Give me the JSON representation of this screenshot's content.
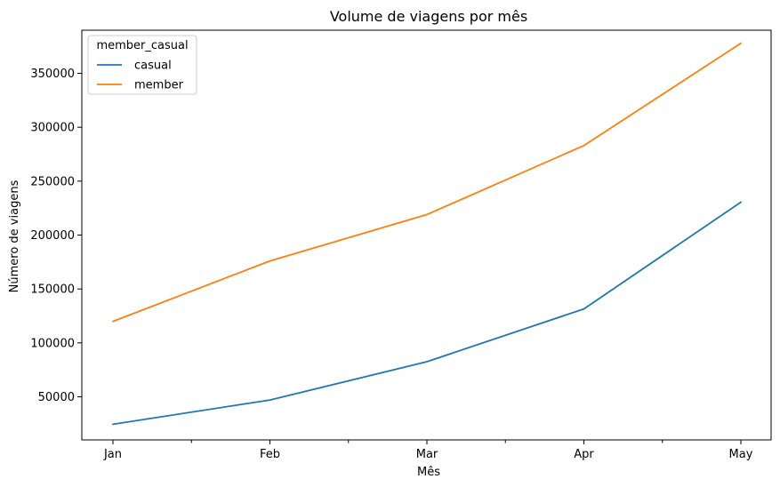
{
  "chart_data": {
    "type": "line",
    "title": "Volume de viagens por mês",
    "xlabel": "Mês",
    "ylabel": "Número de viagens",
    "categories": [
      "Jan",
      "Feb",
      "Mar",
      "Apr",
      "May"
    ],
    "minor_ticks_between": true,
    "yticks": [
      50000,
      100000,
      150000,
      200000,
      250000,
      300000,
      350000
    ],
    "ylim": [
      10000,
      390000
    ],
    "grid": false,
    "legend": {
      "title": "member_casual",
      "placement": "top-left"
    },
    "series": [
      {
        "name": "casual",
        "color": "#1f77b4",
        "values": [
          24500,
          47000,
          82500,
          131500,
          230500
        ]
      },
      {
        "name": "member",
        "color": "#ff7f0e",
        "values": [
          120000,
          176000,
          219000,
          283000,
          378000
        ]
      }
    ]
  }
}
